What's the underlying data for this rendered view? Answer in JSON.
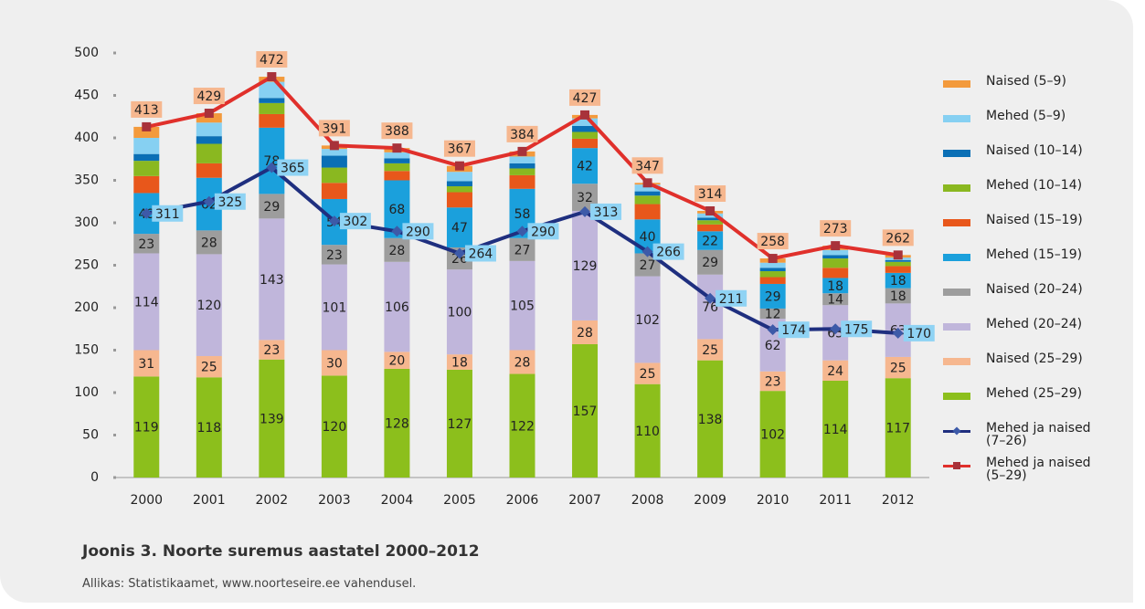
{
  "chart_data": {
    "type": "bar",
    "stacked": true,
    "caption": "Joonis 3. Noorte suremus aastatel 2000–2012",
    "source": "Allikas: Statistikaamet, www.noorteseire.ee vahendusel.",
    "categories": [
      "2000",
      "2001",
      "2002",
      "2003",
      "2004",
      "2005",
      "2006",
      "2007",
      "2008",
      "2009",
      "2010",
      "2011",
      "2012"
    ],
    "ylim": [
      0,
      500
    ],
    "yticks": [
      0,
      50,
      100,
      150,
      200,
      250,
      300,
      350,
      400,
      450,
      500
    ],
    "series": [
      {
        "name": "Naised (5–9)",
        "color": "#f39a3c",
        "show_labels": false,
        "values": [
          13,
          11,
          6,
          4,
          5,
          7,
          6,
          4,
          2,
          3,
          5,
          5,
          3
        ]
      },
      {
        "name": "Mehed (5–9)",
        "color": "#86d0f2",
        "show_labels": false,
        "values": [
          19,
          16,
          19,
          8,
          7,
          11,
          8,
          9,
          8,
          5,
          6,
          6,
          3
        ]
      },
      {
        "name": "Naised (10–14)",
        "color": "#0a6fb5",
        "show_labels": false,
        "values": [
          8,
          9,
          6,
          14,
          6,
          6,
          6,
          7,
          5,
          3,
          4,
          4,
          2
        ]
      },
      {
        "name": "Mehed (10–14)",
        "color": "#8ab820",
        "show_labels": false,
        "values": [
          18,
          23,
          13,
          18,
          9,
          7,
          8,
          8,
          10,
          5,
          7,
          11,
          5
        ]
      },
      {
        "name": "Naised (15–19)",
        "color": "#e8571b",
        "show_labels": false,
        "values": [
          20,
          17,
          16,
          19,
          11,
          18,
          16,
          11,
          18,
          8,
          8,
          12,
          8
        ]
      },
      {
        "name": "Mehed (15–19)",
        "color": "#1ba0dc",
        "show_labels": true,
        "values": [
          48,
          62,
          78,
          54,
          68,
          47,
          58,
          42,
          40,
          22,
          29,
          18,
          18
        ]
      },
      {
        "name": "Naised (20–24)",
        "color": "#9d9d9d",
        "show_labels": true,
        "values": [
          23,
          28,
          29,
          23,
          28,
          26,
          27,
          32,
          27,
          29,
          12,
          14,
          18
        ]
      },
      {
        "name": "Mehed (20–24)",
        "color": "#c0b6db",
        "show_labels": true,
        "values": [
          114,
          120,
          143,
          101,
          106,
          100,
          105,
          129,
          102,
          76,
          62,
          65,
          63
        ]
      },
      {
        "name": "Naised (25–29)",
        "color": "#f6b78f",
        "show_labels": true,
        "values": [
          31,
          25,
          23,
          30,
          20,
          18,
          28,
          28,
          25,
          25,
          23,
          24,
          25
        ]
      },
      {
        "name": "Mehed (25–29)",
        "color": "#8cbf1c",
        "show_labels": true,
        "values": [
          119,
          118,
          139,
          120,
          128,
          127,
          122,
          157,
          110,
          138,
          102,
          114,
          117
        ]
      },
      {
        "name": "Mehed ja naised (7–26)",
        "type": "line",
        "color": "#1f2f7f",
        "marker": "diamond",
        "label_color": "#8fd3f4",
        "show_labels": true,
        "values": [
          311,
          325,
          365,
          302,
          290,
          264,
          290,
          313,
          266,
          211,
          174,
          175,
          170
        ]
      },
      {
        "name": "Mehed ja naised (5–29)",
        "type": "line",
        "color": "#e0302b",
        "marker": "square",
        "label_color": "#f6b78f",
        "show_labels": true,
        "values": [
          413,
          429,
          472,
          391,
          388,
          367,
          384,
          427,
          347,
          314,
          258,
          273,
          262
        ]
      }
    ]
  }
}
